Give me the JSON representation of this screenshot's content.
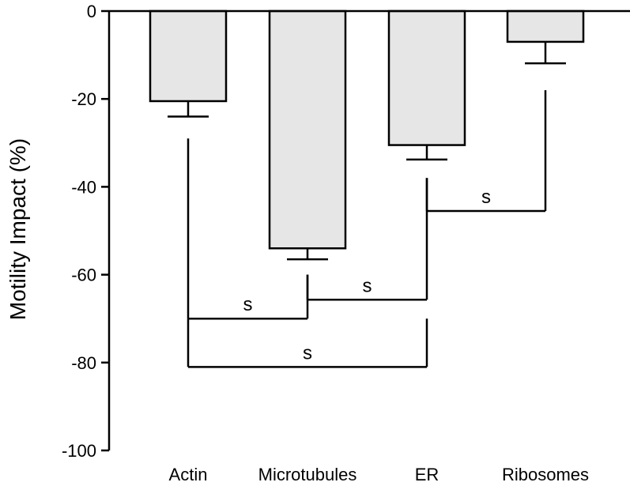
{
  "chart_data": {
    "type": "bar",
    "title": "",
    "xlabel": "",
    "ylabel": "Motility Impact (%)",
    "ylim": [
      -100,
      0
    ],
    "yticks": [
      0,
      -20,
      -40,
      -60,
      -80,
      -100
    ],
    "categories": [
      "Actin",
      "Microtubules",
      "ER",
      "Ribosomes"
    ],
    "values": [
      -20.5,
      -54,
      -30.5,
      -7
    ],
    "errors": [
      3.5,
      2.5,
      3.3,
      4.9
    ],
    "bar_color": "#e6e6e6",
    "grid": false,
    "legend": "none",
    "significance": [
      {
        "from": 0,
        "to": 1,
        "y": -70,
        "label": "s",
        "top_from": -29,
        "top_to": -60
      },
      {
        "from": 1,
        "to": 2,
        "y": -65.7,
        "label": "s",
        "top_from": -60,
        "top_to": -38
      },
      {
        "from": 0,
        "to": 2,
        "y": -81,
        "label": "s",
        "top_from": -70,
        "top_to": -70
      },
      {
        "from": 2,
        "to": 3,
        "y": -45.5,
        "label": "s",
        "top_from": -38,
        "top_to": -18
      }
    ]
  }
}
